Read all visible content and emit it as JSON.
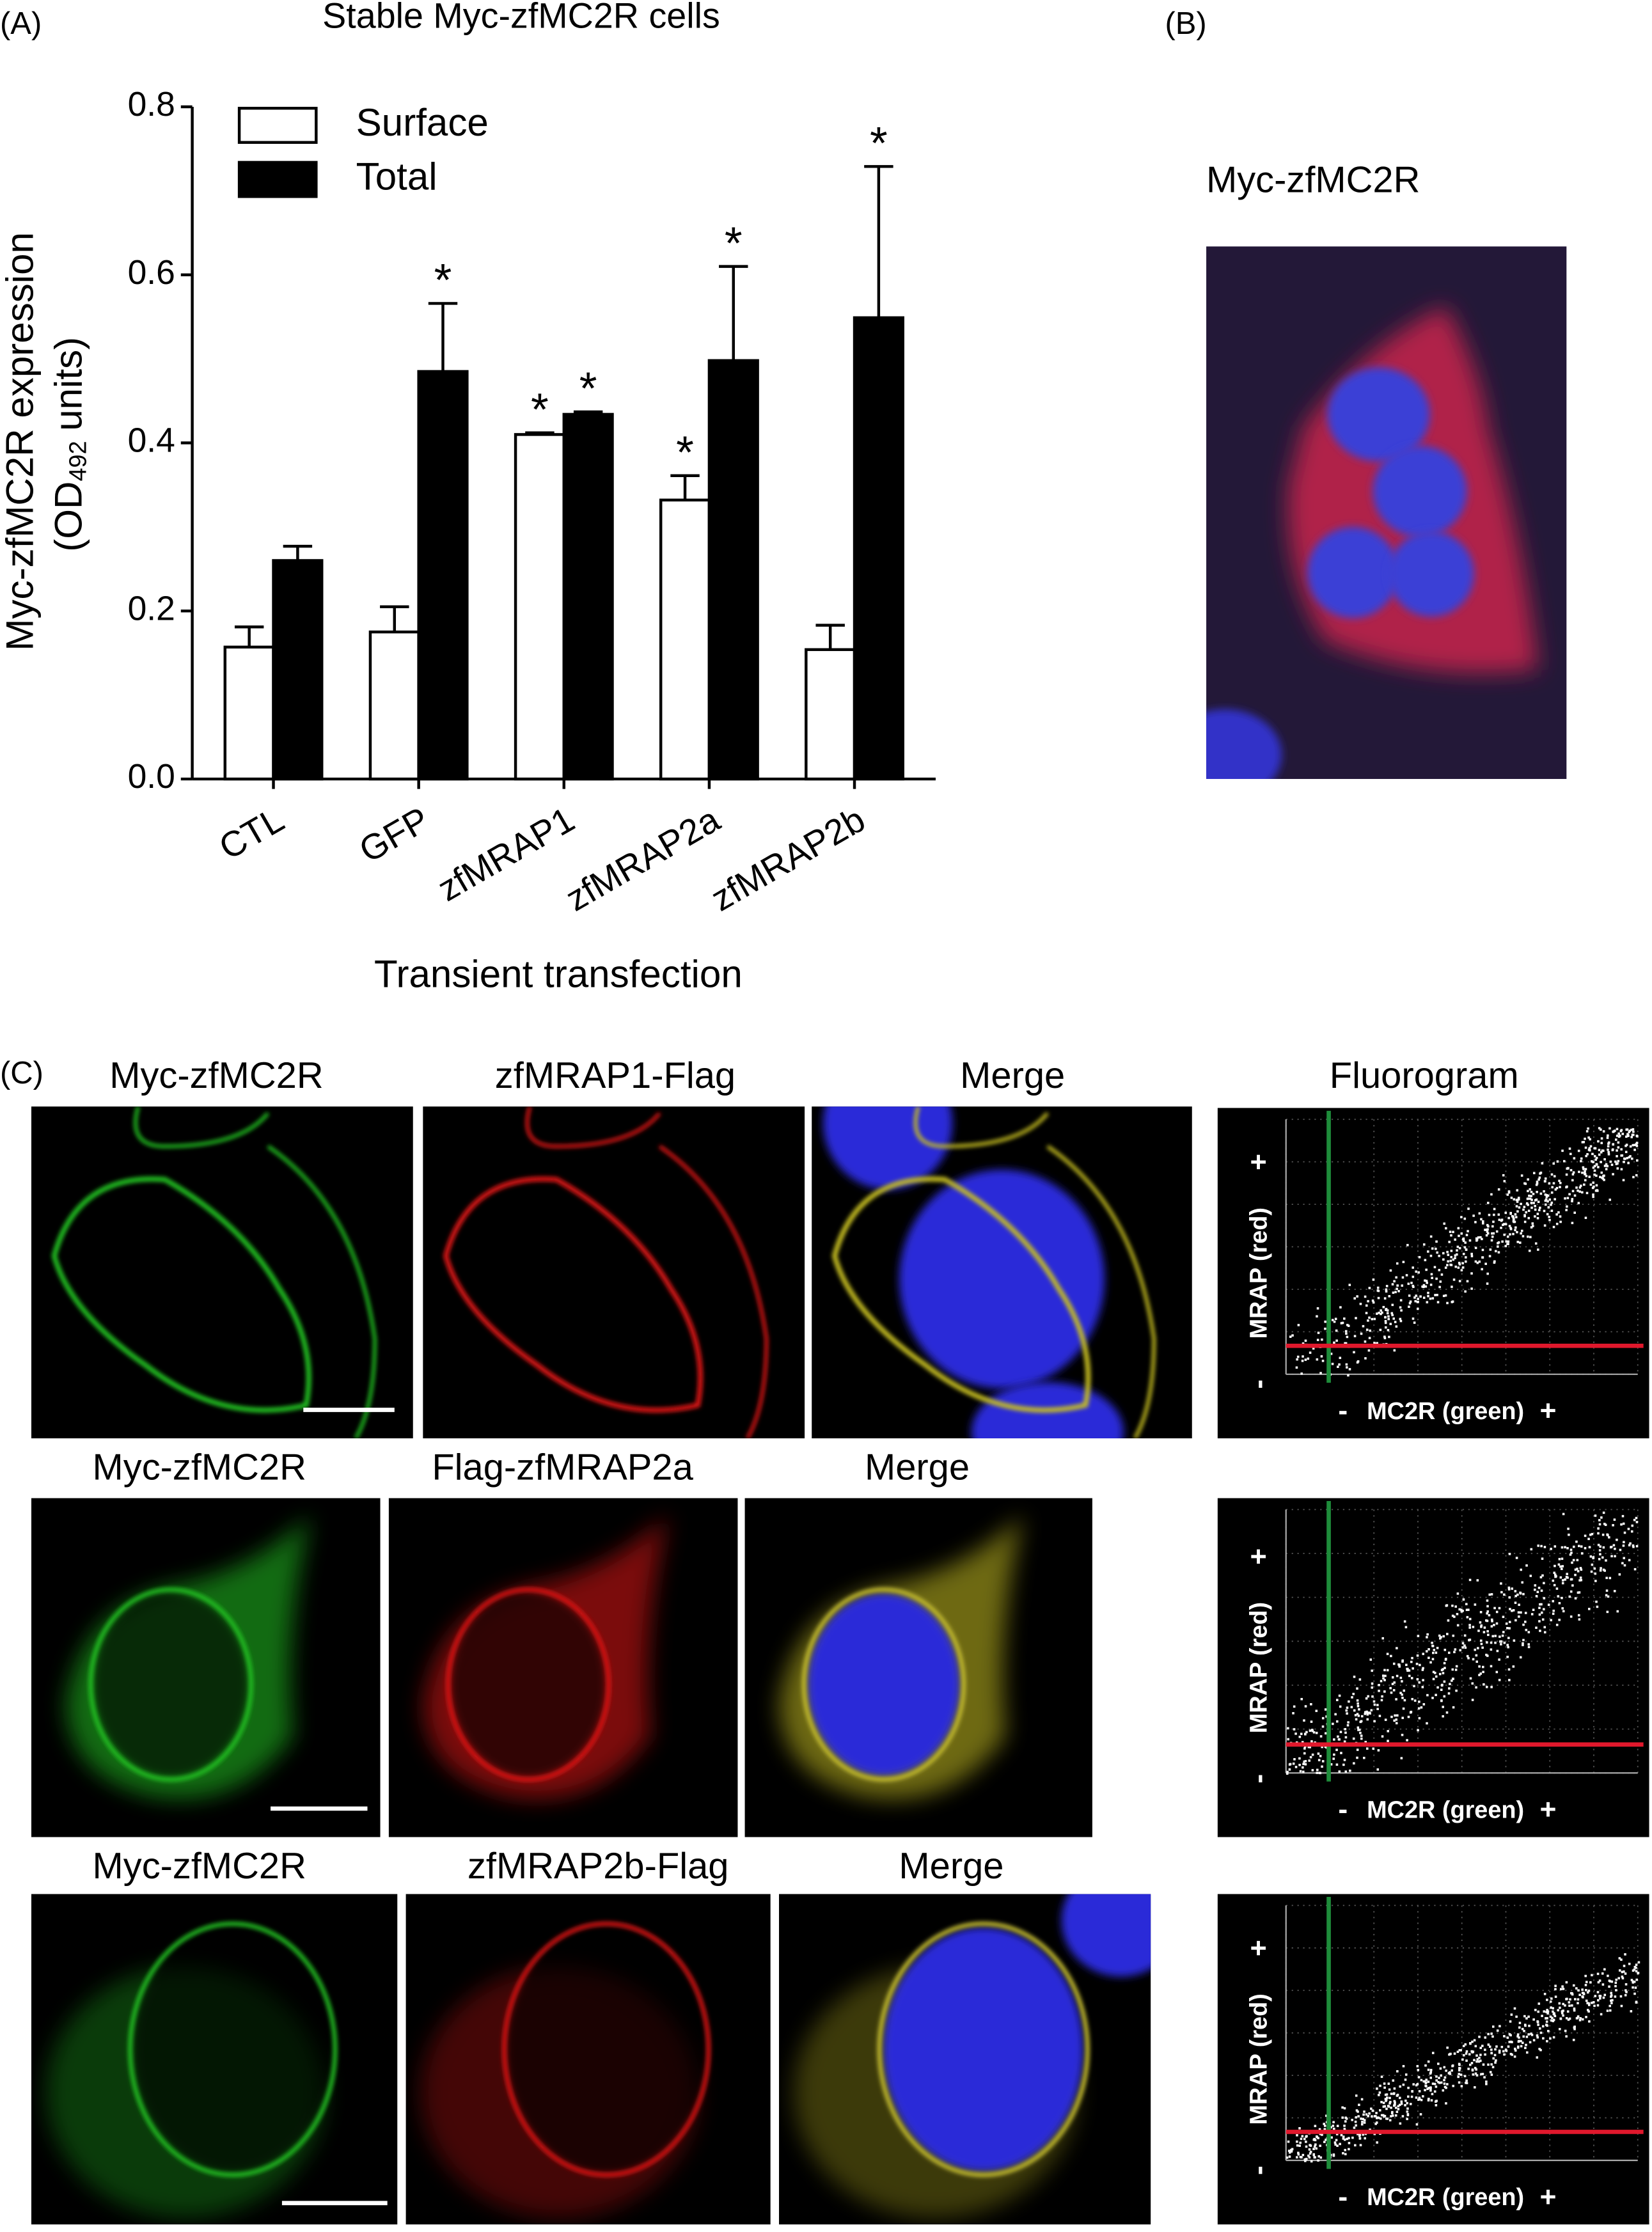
{
  "chart_data": {
    "type": "bar",
    "panel_label": "(A)",
    "title": "Stable Myc-zfMC2R cells",
    "x_label": "Transient transfection",
    "y_label": {
      "line1": "Myc-zfMC2R expression",
      "line2_start": "(OD",
      "line2_sub": "492",
      "line2_end": "units)"
    },
    "categories": [
      "CTL",
      "GFP",
      "zfMRAP1",
      "zfMRAP2a",
      "zfMRAP2b"
    ],
    "series": [
      {
        "name": "Surface",
        "color": "#ffffff",
        "values": [
          0.157,
          0.175,
          0.41,
          0.332,
          0.154
        ],
        "errors": [
          0.024,
          0.03,
          0.002,
          0.029,
          0.029
        ],
        "annotations": [
          null,
          null,
          "*",
          "*",
          null
        ]
      },
      {
        "name": "Total",
        "color": "#000000",
        "values": [
          0.26,
          0.485,
          0.434,
          0.498,
          0.549
        ],
        "errors": [
          0.017,
          0.081,
          0.003,
          0.112,
          0.18
        ],
        "annotations": [
          null,
          "*",
          "*",
          "*",
          "*"
        ]
      }
    ],
    "ylim": [
      0,
      0.8
    ],
    "yticks": [
      {
        "value": 0,
        "label": "0.0"
      },
      0.2,
      0.4,
      0.6,
      0.8
    ],
    "legend": "upper left"
  },
  "panel_b": {
    "label": "(B)",
    "title": "Myc-zfMC2R"
  },
  "panel_c": {
    "label": "(C)",
    "fluorogram_title": "Fluorogram",
    "fluorogram_axes": {
      "y": "MRAP (red)",
      "x": "MC2R (green)",
      "minus": "-",
      "plus": "+"
    },
    "rows": [
      {
        "headers": [
          "Myc-zfMC2R",
          "zfMRAP1-Flag",
          "Merge"
        ]
      },
      {
        "headers": [
          "Myc-zfMC2R",
          "Flag-zfMRAP2a",
          "Merge"
        ]
      },
      {
        "headers": [
          "Myc-zfMC2R",
          "zfMRAP2b-Flag",
          "Merge"
        ]
      }
    ]
  }
}
